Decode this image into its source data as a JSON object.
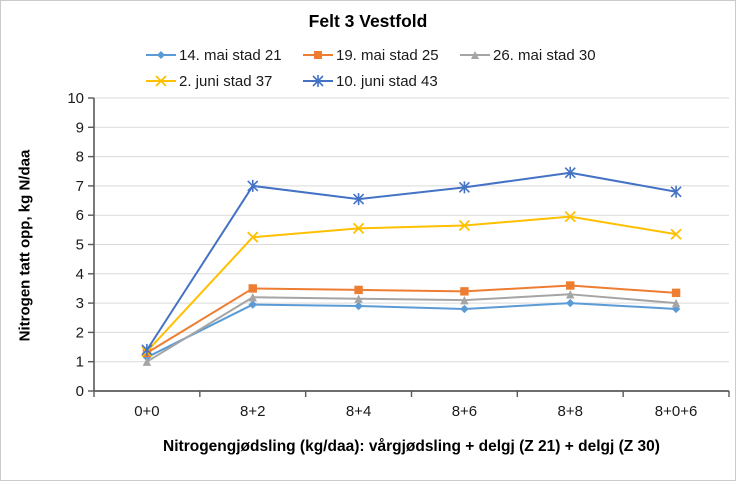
{
  "chart_data": {
    "type": "line",
    "title": "Felt 3 Vestfold",
    "categories": [
      "0+0",
      "8+2",
      "8+4",
      "8+6",
      "8+8",
      "8+0+6"
    ],
    "series": [
      {
        "name": "14. mai stad 21",
        "color": "#5B9BD5",
        "marker": "diamond",
        "values": [
          1.15,
          2.95,
          2.9,
          2.8,
          3.0,
          2.8
        ]
      },
      {
        "name": "19. mai stad 25",
        "color": "#ED7D31",
        "marker": "square",
        "values": [
          1.3,
          3.5,
          3.45,
          3.4,
          3.6,
          3.35
        ]
      },
      {
        "name": "26. mai stad 30",
        "color": "#A5A5A5",
        "marker": "triangle",
        "values": [
          1.0,
          3.2,
          3.15,
          3.1,
          3.3,
          3.0
        ]
      },
      {
        "name": "2. juni stad 37",
        "color": "#FFC000",
        "marker": "x",
        "values": [
          1.35,
          5.25,
          5.55,
          5.65,
          5.95,
          5.35
        ]
      },
      {
        "name": "10. juni stad 43",
        "color": "#4472C4",
        "marker": "asterisk",
        "values": [
          1.4,
          7.0,
          6.55,
          6.95,
          7.45,
          6.8
        ]
      }
    ],
    "xlabel": "Nitrogengjødsling (kg/daa): vårgjødsling + delgj (Z 21) + delgj (Z 30)",
    "ylabel": "Nitrogen tatt opp, kg N/daa",
    "ylim": [
      0,
      10
    ],
    "ytick_step": 1,
    "grid": true,
    "legend_position": "top"
  },
  "colors": {
    "gridline": "#D9D9D9",
    "axis": "#595959",
    "tick_text": "#1a1a1a"
  }
}
